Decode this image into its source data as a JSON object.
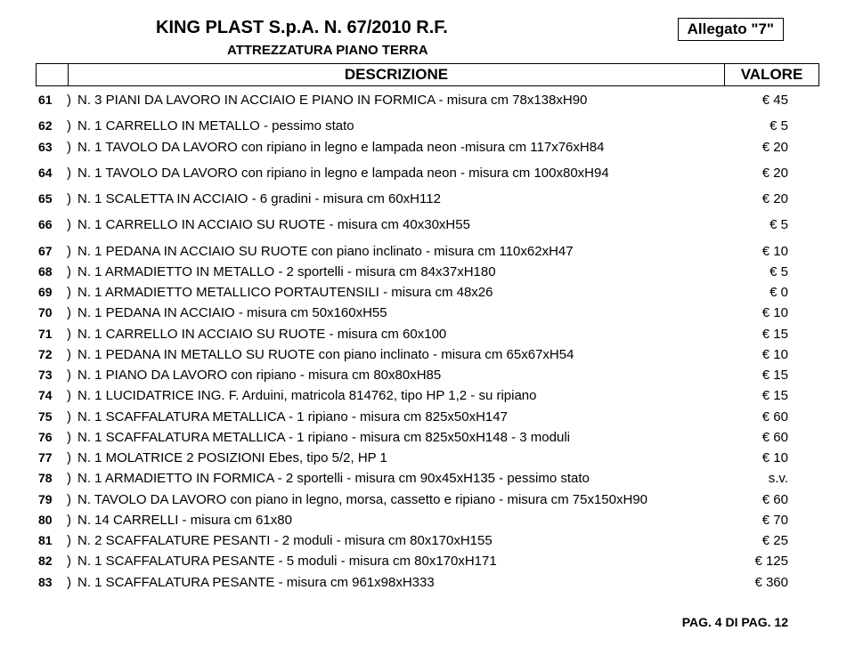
{
  "header": {
    "company": "KING PLAST S.p.A.  N. 67/2010 R.F.",
    "allegato": "Allegato \"7\"",
    "subtitle": "ATTREZZATURA PIANO TERRA",
    "desc_label": "DESCRIZIONE",
    "val_label": "VALORE"
  },
  "rows": [
    {
      "n": "61",
      "d": "N. 3 PIANI DA LAVORO IN ACCIAIO E PIANO IN FORMICA - misura cm 78x138xH90",
      "v": "€ 45"
    },
    {
      "n": "62",
      "d": "N. 1 CARRELLO IN METALLO - pessimo stato",
      "v": "€ 5"
    },
    {
      "n": "63",
      "d": "N. 1 TAVOLO DA LAVORO con ripiano in legno e lampada neon -misura cm 117x76xH84",
      "v": "€ 20"
    },
    {
      "n": "64",
      "d": "N. 1 TAVOLO DA LAVORO con ripiano in legno e lampada neon - misura cm 100x80xH94",
      "v": "€ 20"
    },
    {
      "n": "65",
      "d": "N. 1 SCALETTA IN ACCIAIO - 6 gradini - misura cm 60xH112",
      "v": "€ 20"
    },
    {
      "n": "66",
      "d": "N. 1 CARRELLO IN ACCIAIO SU RUOTE - misura cm 40x30xH55",
      "v": "€ 5"
    },
    {
      "n": "67",
      "d": "N. 1 PEDANA IN ACCIAIO SU RUOTE con piano inclinato - misura cm 110x62xH47",
      "v": "€ 10"
    },
    {
      "n": "68",
      "d": "N. 1 ARMADIETTO IN METALLO - 2 sportelli  - misura cm 84x37xH180",
      "v": "€ 5"
    },
    {
      "n": "69",
      "d": "N. 1 ARMADIETTO METALLICO PORTAUTENSILI - misura cm 48x26",
      "v": "€ 0"
    },
    {
      "n": "70",
      "d": "N. 1 PEDANA IN ACCIAIO - misura cm 50x160xH55",
      "v": "€ 10"
    },
    {
      "n": "71",
      "d": "N. 1 CARRELLO IN ACCIAIO SU RUOTE - misura cm 60x100",
      "v": "€ 15"
    },
    {
      "n": "72",
      "d": "N. 1 PEDANA IN METALLO SU RUOTE con piano inclinato - misura cm 65x67xH54",
      "v": "€ 10"
    },
    {
      "n": "73",
      "d": "N. 1 PIANO DA LAVORO con ripiano - misura cm 80x80xH85",
      "v": "€ 15"
    },
    {
      "n": "74",
      "d": "N. 1 LUCIDATRICE ING. F. Arduini, matricola 814762, tipo HP 1,2 - su ripiano",
      "v": "€ 15"
    },
    {
      "n": "75",
      "d": "N. 1 SCAFFALATURA METALLICA -  1 ripiano - misura cm 825x50xH147",
      "v": "€ 60"
    },
    {
      "n": "76",
      "d": "N. 1 SCAFFALATURA METALLICA -  1 ripiano - misura cm 825x50xH148 - 3 moduli",
      "v": "€ 60"
    },
    {
      "n": "77",
      "d": "N. 1 MOLATRICE 2 POSIZIONI Ebes, tipo 5/2, HP 1",
      "v": "€ 10"
    },
    {
      "n": "78",
      "d": "N. 1 ARMADIETTO IN FORMICA -  2 sportelli - misura cm 90x45xH135 - pessimo stato",
      "v": "s.v."
    },
    {
      "n": "79",
      "d": "N. TAVOLO DA LAVORO con piano in legno, morsa, cassetto e ripiano - misura cm 75x150xH90",
      "v": "€ 60"
    },
    {
      "n": "80",
      "d": "N. 14 CARRELLI - misura cm 61x80",
      "v": "€ 70"
    },
    {
      "n": "81",
      "d": "N. 2 SCAFFALATURE PESANTI - 2 moduli - misura cm 80x170xH155",
      "v": "€ 25"
    },
    {
      "n": "82",
      "d": "N. 1 SCAFFALATURA PESANTE - 5 moduli - misura cm 80x170xH171",
      "v": "€ 125"
    },
    {
      "n": "83",
      "d": "N. 1 SCAFFALATURA PESANTE - misura cm 961x98xH333",
      "v": "€ 360"
    }
  ],
  "footer": "PAG. 4 DI PAG.  12",
  "gap_after": [
    "61",
    "63",
    "64",
    "65",
    "66"
  ]
}
